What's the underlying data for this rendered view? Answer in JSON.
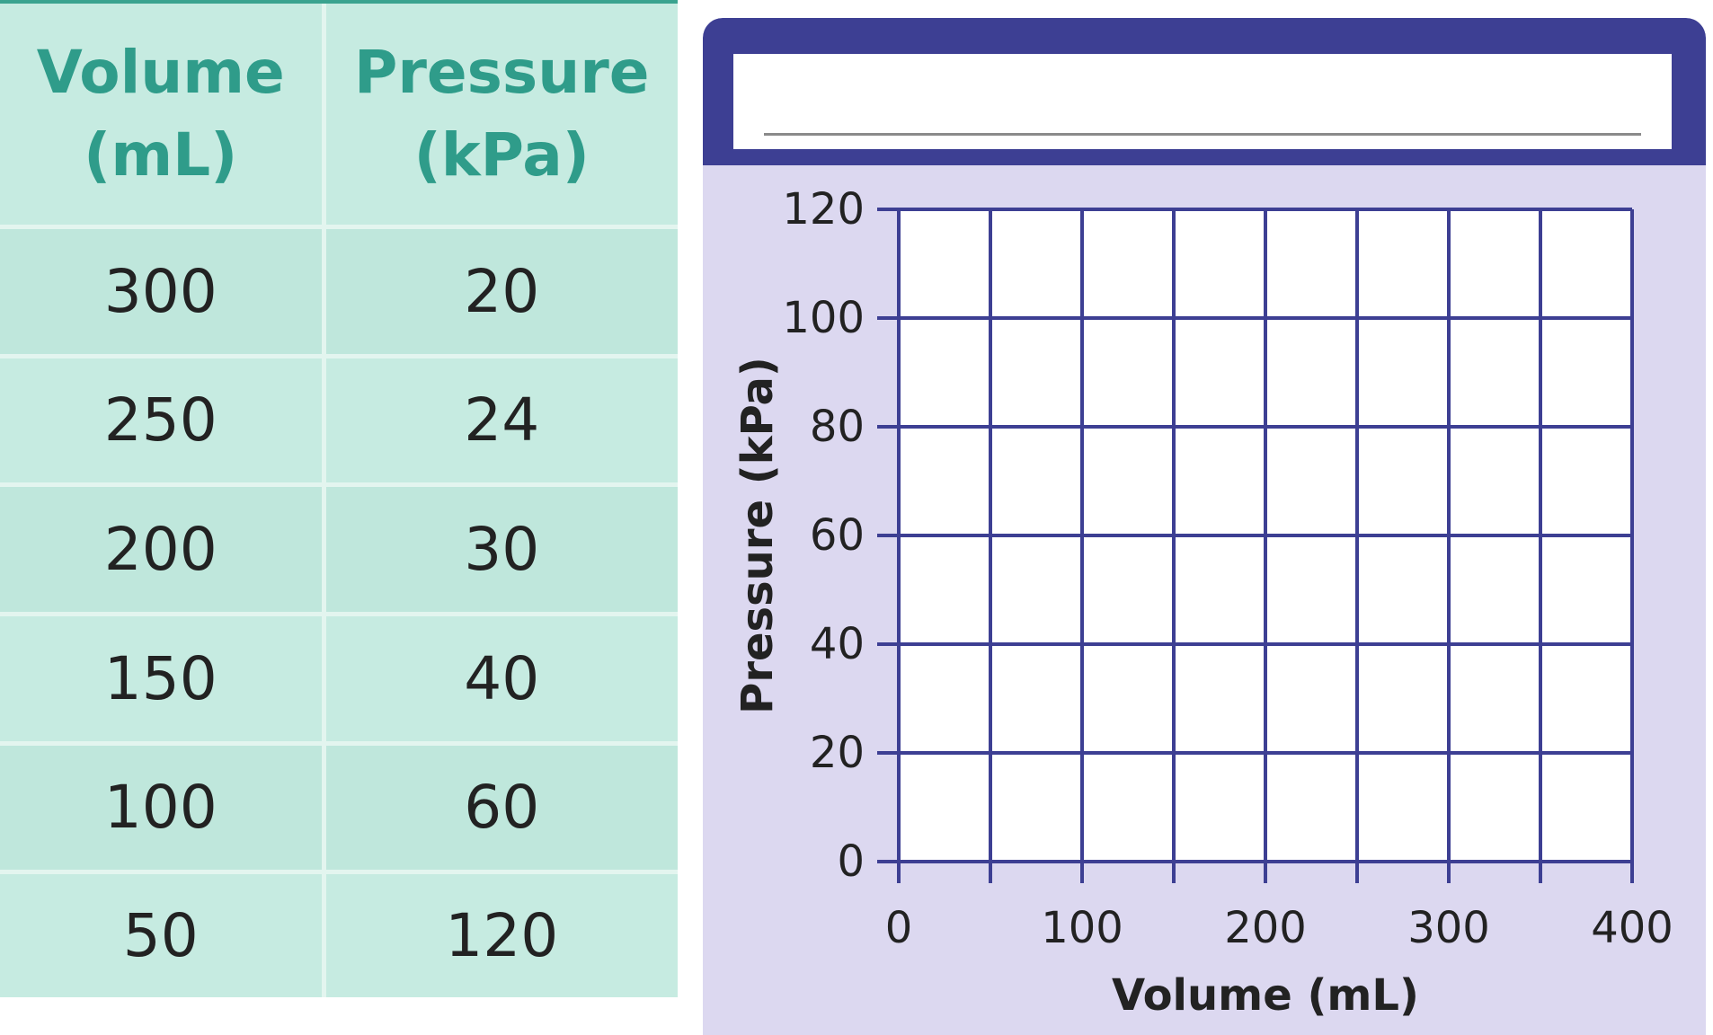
{
  "table": {
    "headers": [
      {
        "line1": "Volume",
        "line2": "(mL)"
      },
      {
        "line1": "Pressure",
        "line2": "(kPa)"
      }
    ],
    "rows": [
      {
        "volume": "300",
        "pressure": "20"
      },
      {
        "volume": "250",
        "pressure": "24"
      },
      {
        "volume": "200",
        "pressure": "30"
      },
      {
        "volume": "150",
        "pressure": "40"
      },
      {
        "volume": "100",
        "pressure": "60"
      },
      {
        "volume": "50",
        "pressure": "120"
      }
    ]
  },
  "colors": {
    "table_background": "#bfe8dc",
    "table_header_text": "#2f9c8a",
    "card_background": "#dcd8f0",
    "header_bar": "#3d3f93",
    "grid_line": "#3d3f93"
  },
  "chart_data": {
    "type": "line",
    "title": "",
    "xlabel": "Volume (mL)",
    "ylabel": "Pressure (kPa)",
    "xlim": [
      0,
      400
    ],
    "ylim": [
      0,
      120
    ],
    "x_ticks": [
      0,
      100,
      200,
      300,
      400
    ],
    "y_ticks": [
      0,
      20,
      40,
      60,
      80,
      100,
      120
    ],
    "grid": true,
    "series": []
  }
}
